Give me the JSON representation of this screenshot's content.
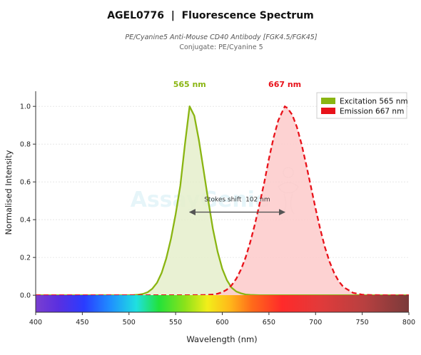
{
  "header": {
    "title": "AGEL0776  |  Fluorescence Spectrum",
    "subtitle": "PE/Cyanine5 Anti-Mouse CD40 Antibody [FGK4.5/FGK45]",
    "conjugate": "Conjugate: PE/Cyanine 5"
  },
  "watermark": "AssayGenie",
  "colors": {
    "excitation": "#8ab512",
    "emission": "#e8121a",
    "excitation_fill": "#e5efcb",
    "emission_fill": "#fdcaca"
  },
  "chart_data": {
    "type": "line",
    "xlabel": "Wavelength (nm)",
    "ylabel": "Normalised Intensity",
    "xlim": [
      400,
      800
    ],
    "ylim": [
      -0.09,
      1.08
    ],
    "x_ticks": [
      400,
      450,
      500,
      550,
      600,
      650,
      700,
      750,
      800
    ],
    "y_ticks": [
      0.0,
      0.2,
      0.4,
      0.6,
      0.8,
      1.0
    ],
    "x_tick_labels": [
      "400",
      "450",
      "500",
      "550",
      "600",
      "650",
      "700",
      "750",
      "800"
    ],
    "y_tick_labels": [
      "0.0",
      "0.2",
      "0.4",
      "0.6",
      "0.8",
      "1.0"
    ],
    "grid": true,
    "legend_position": "top-right",
    "series": [
      {
        "key": "excitation",
        "name": "Excitation  565 nm",
        "peak": 565,
        "peak_label": "565 nm",
        "style": "solid",
        "x": [
          400,
          420,
          440,
          460,
          480,
          490,
          500,
          505,
          510,
          515,
          520,
          525,
          530,
          535,
          540,
          545,
          550,
          555,
          560,
          565,
          570,
          575,
          580,
          585,
          590,
          595,
          600,
          605,
          610,
          615,
          620,
          625,
          630,
          640,
          650,
          660,
          680,
          700,
          720,
          740,
          760,
          780,
          800
        ],
        "y": [
          0,
          0,
          0,
          0,
          0,
          0,
          0,
          0.001,
          0.003,
          0.007,
          0.016,
          0.034,
          0.066,
          0.118,
          0.195,
          0.299,
          0.428,
          0.58,
          0.8,
          1.0,
          0.95,
          0.82,
          0.66,
          0.5,
          0.35,
          0.23,
          0.14,
          0.08,
          0.04,
          0.02,
          0.01,
          0.004,
          0.002,
          0,
          0,
          0,
          0,
          0,
          0,
          0,
          0,
          0,
          0
        ]
      },
      {
        "key": "emission",
        "name": "Emission  667 nm",
        "peak": 667,
        "peak_label": "667 nm",
        "style": "dashed",
        "x": [
          400,
          440,
          480,
          520,
          560,
          580,
          590,
          595,
          600,
          605,
          610,
          615,
          620,
          625,
          630,
          635,
          640,
          645,
          650,
          655,
          660,
          667,
          670,
          675,
          680,
          685,
          690,
          695,
          700,
          705,
          710,
          715,
          720,
          725,
          730,
          740,
          750,
          760,
          780,
          800
        ],
        "y": [
          0,
          0,
          0,
          0,
          0,
          0.001,
          0.004,
          0.008,
          0.016,
          0.03,
          0.053,
          0.087,
          0.136,
          0.2,
          0.281,
          0.377,
          0.484,
          0.596,
          0.723,
          0.834,
          0.925,
          1.0,
          0.99,
          0.955,
          0.89,
          0.8,
          0.69,
          0.575,
          0.458,
          0.35,
          0.255,
          0.177,
          0.117,
          0.073,
          0.043,
          0.013,
          0.003,
          0.001,
          0,
          0
        ]
      }
    ],
    "annotation": {
      "label": "Stokes shift  102 nm",
      "x_start": 565,
      "x_end": 667,
      "y": 0.44
    }
  }
}
